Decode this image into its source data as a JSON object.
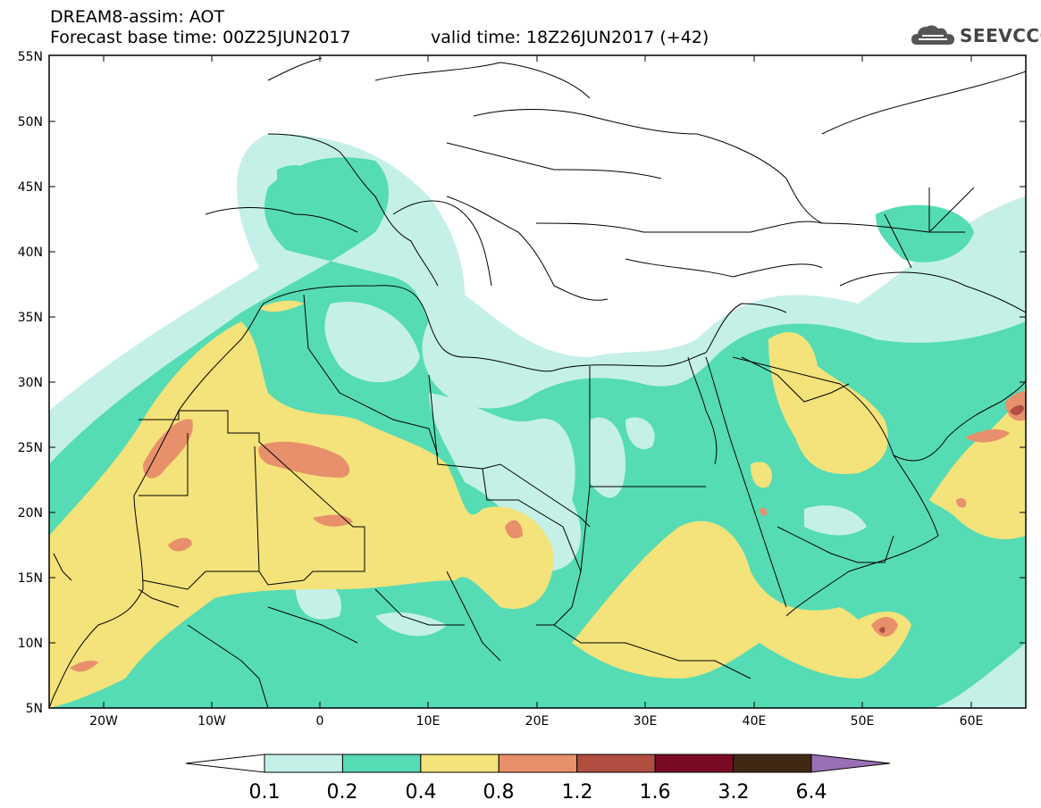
{
  "header": {
    "title": "DREAM8-assim: AOT",
    "forecast": "Forecast base time: 00Z25JUN2017",
    "valid": "valid time: 18Z26JUN2017 (+42)"
  },
  "logo": {
    "text": "SEEVCCC",
    "icon": "cloud-icon"
  },
  "map": {
    "lon_range": [
      -25,
      65
    ],
    "lat_range": [
      5,
      55
    ],
    "lat_ticks": [
      "5N",
      "10N",
      "15N",
      "20N",
      "25N",
      "30N",
      "35N",
      "40N",
      "45N",
      "50N",
      "55N"
    ],
    "lon_ticks": [
      "20W",
      "10W",
      "0",
      "10E",
      "20E",
      "30E",
      "40E",
      "50E",
      "60E"
    ]
  },
  "colorbar": {
    "labels": [
      "0.1",
      "0.2",
      "0.4",
      "0.8",
      "1.2",
      "1.6",
      "3.2",
      "6.4"
    ],
    "colors": [
      "#c4f0e8",
      "#55dcb4",
      "#f4e27a",
      "#e8906c",
      "#b04e40",
      "#7a0a24",
      "#3e2a14"
    ],
    "under_color": "#ffffff",
    "over_color": "#9a70b4"
  },
  "colors": {
    "aot_01_02": "#c4f0e8",
    "aot_02_04": "#55dcb4",
    "aot_04_08": "#f4e27a",
    "aot_08_12": "#e8906c"
  }
}
